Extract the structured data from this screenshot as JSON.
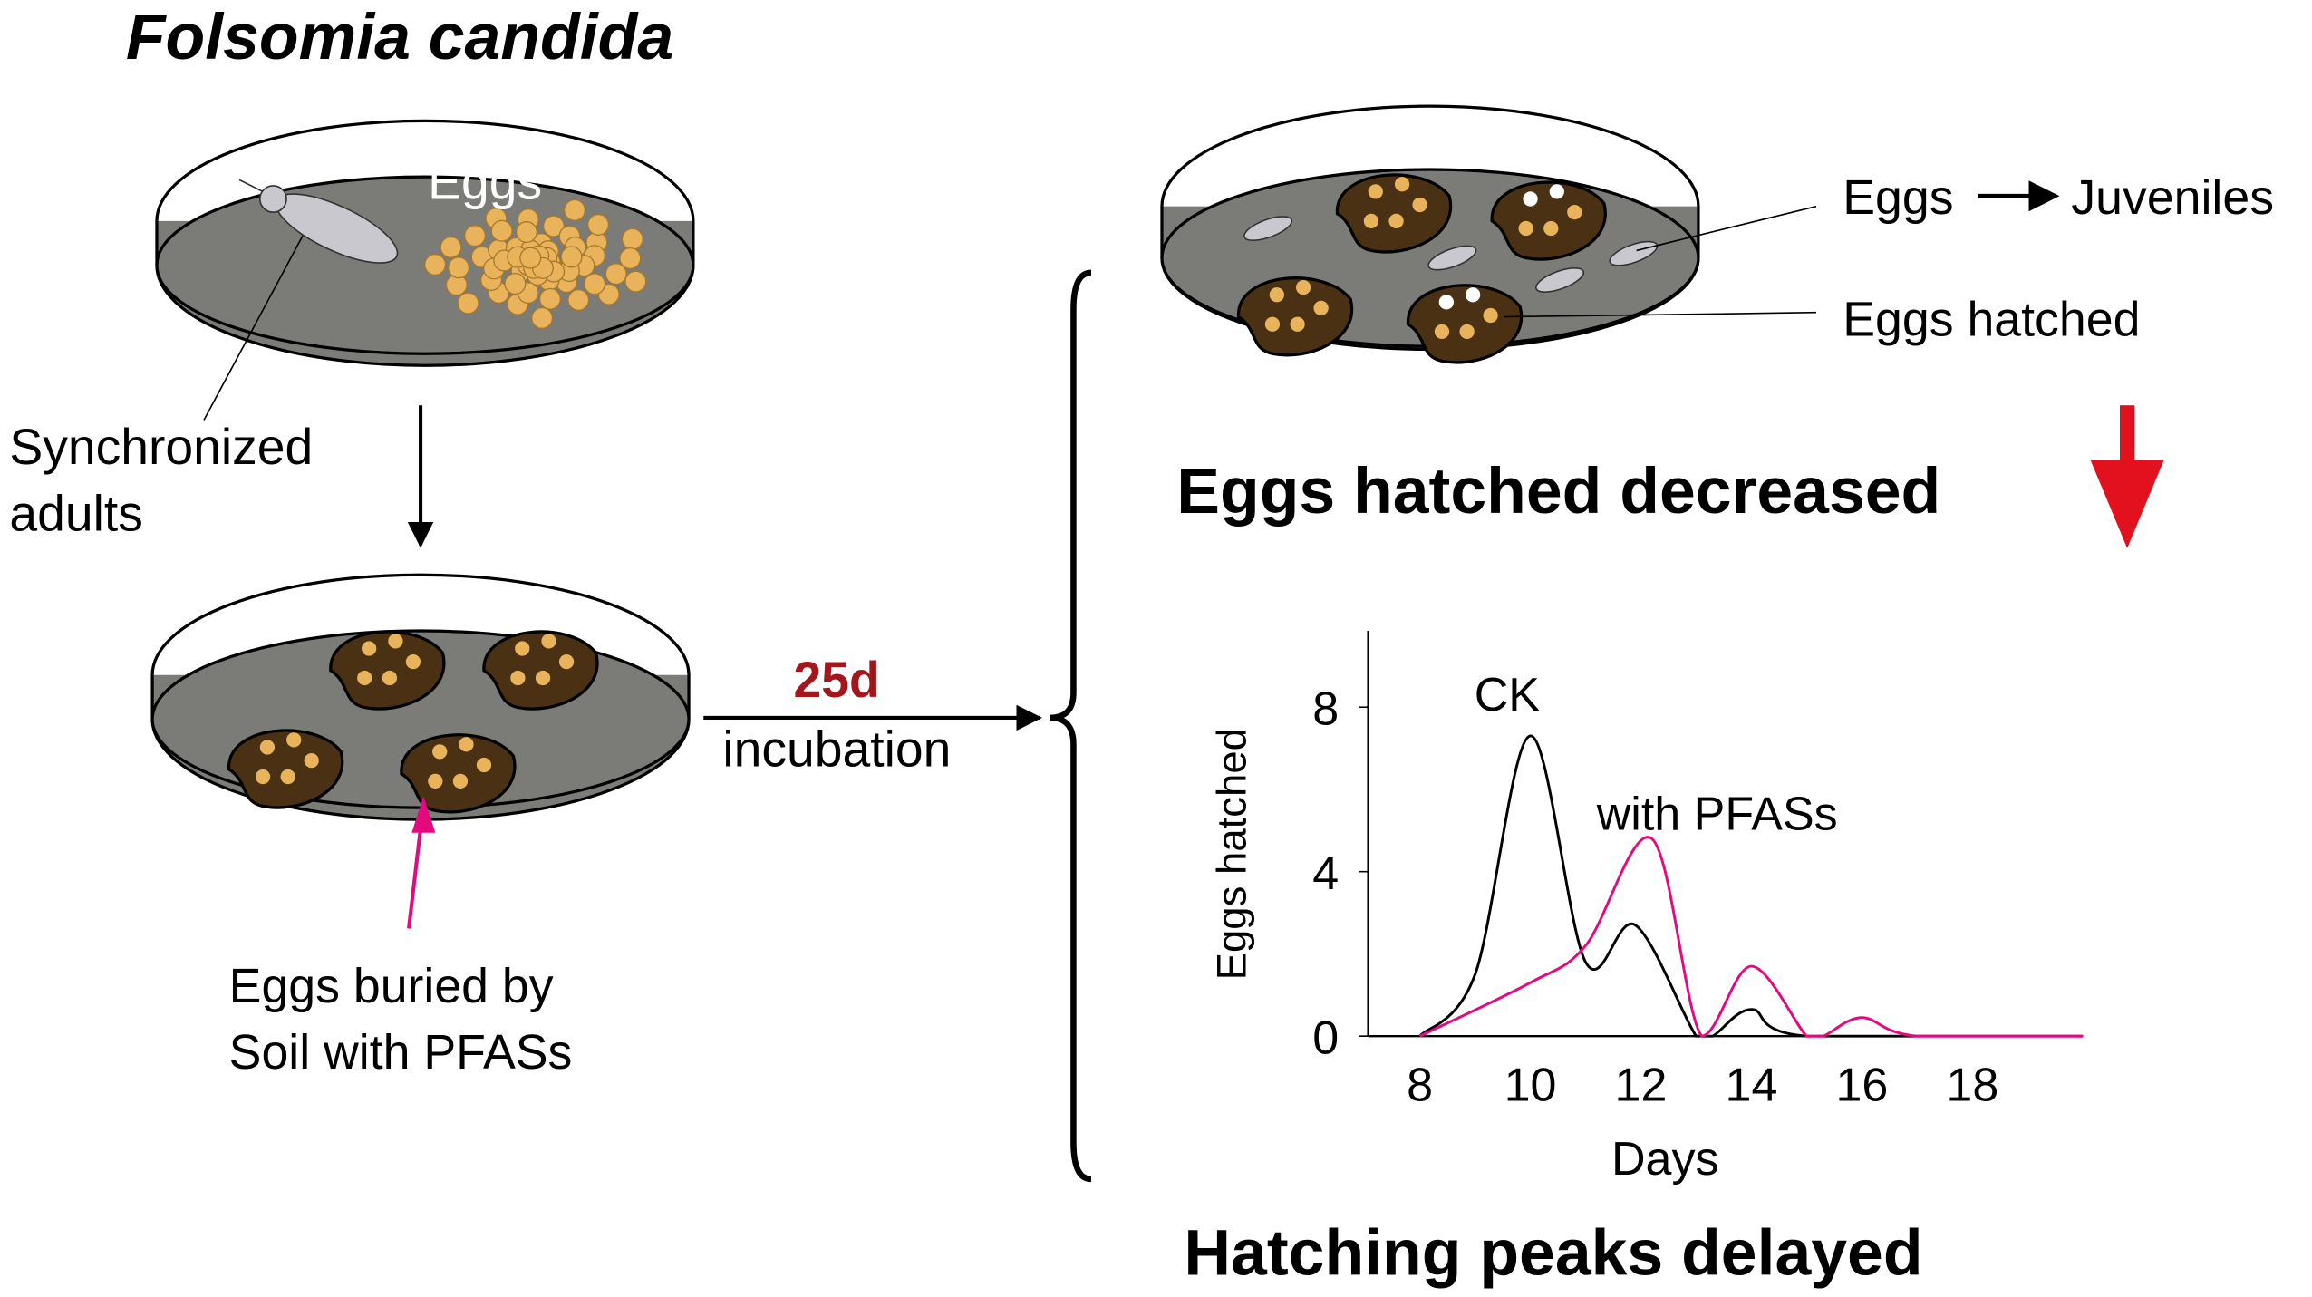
{
  "title": "Folsomia candida",
  "labels": {
    "eggs": "Eggs",
    "synchronized_adults_1": "Synchronized",
    "synchronized_adults_2": "adults",
    "buried_1": "Eggs buried by",
    "buried_2": "Soil with PFASs",
    "duration": "25d",
    "incubation": "incubation",
    "eggs_juveniles_a": "Eggs",
    "eggs_juveniles_b": "Juveniles",
    "eggs_hatched": "Eggs hatched",
    "decreased": "Eggs hatched decreased",
    "delayed": "Hatching peaks delayed"
  },
  "colors": {
    "accent_red": "#e3101e",
    "magenta": "#e5097f",
    "duration": "#a3161b",
    "dish": "#7b7c78",
    "soil": "#4a3113",
    "egg": "#e8b35a"
  },
  "chart_data": {
    "type": "line",
    "xlabel": "Days",
    "ylabel": "Eggs hatched",
    "xlim": [
      7,
      20
    ],
    "ylim": [
      0,
      10
    ],
    "xticks": [
      8,
      10,
      12,
      14,
      16,
      18
    ],
    "yticks": [
      0,
      4,
      8
    ],
    "series": [
      {
        "name": "CK",
        "color": "#000000",
        "x": [
          8,
          9,
          10,
          11,
          11.9,
          13,
          13.3,
          14,
          15,
          20
        ],
        "y": [
          0,
          1.5,
          7.3,
          1.8,
          2.7,
          0,
          0,
          0.65,
          0,
          0
        ]
      },
      {
        "name": "with PFASs",
        "color": "#e5097f",
        "x": [
          8,
          10,
          11,
          12.2,
          13.1,
          14,
          15,
          15.3,
          16,
          17,
          20
        ],
        "y": [
          0,
          1.3,
          2.2,
          4.8,
          0,
          1.7,
          0,
          0,
          0.45,
          0,
          0
        ]
      }
    ]
  }
}
